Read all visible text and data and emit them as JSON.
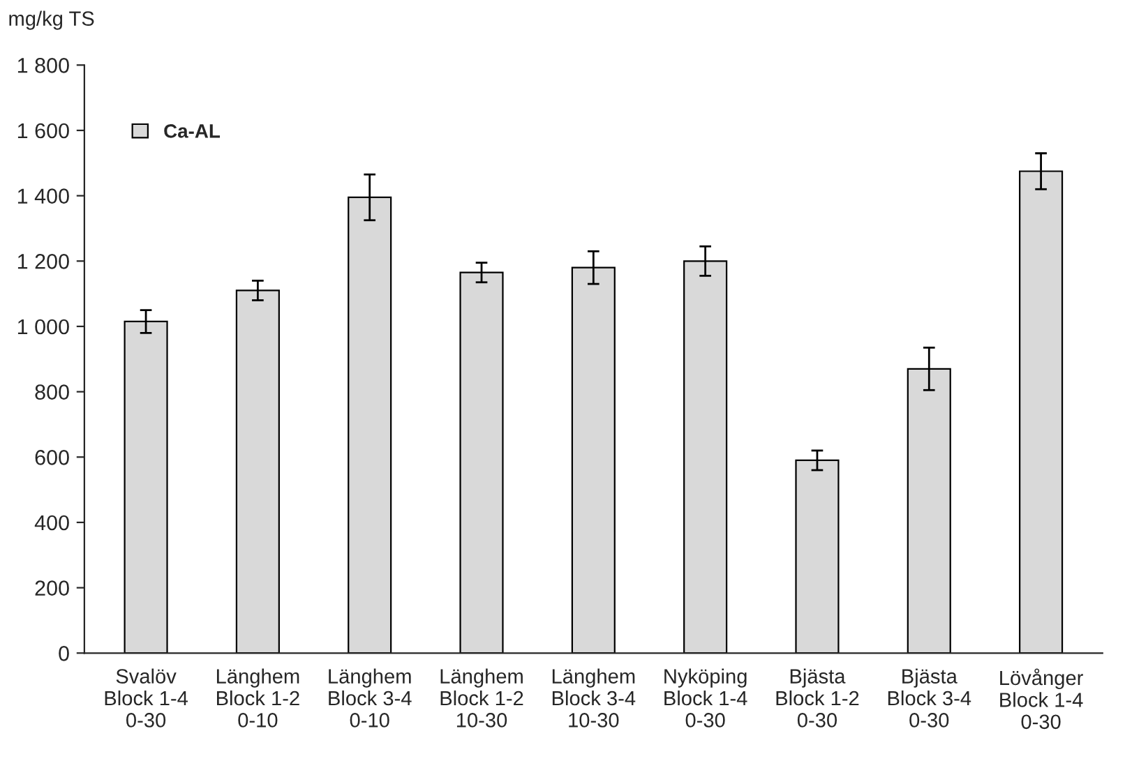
{
  "chart_data": {
    "type": "bar",
    "ylabel": "mg/kg TS",
    "categories": [
      "Svalöv\nBlock 1-4\n0-30",
      "Länghem\nBlock 1-2\n0-10",
      "Länghem\nBlock 3-4\n0-10",
      "Länghem\nBlock 1-2\n10-30",
      "Länghem\nBlock 3-4\n10-30",
      "Nyköping\nBlock 1-4\n0-30",
      "Bjästa\nBlock 1-2\n0-30",
      "Bjästa\nBlock 3-4\n0-30",
      "Lövånger\nBlock 1-4\n0-30"
    ],
    "series": [
      {
        "name": "Ca-AL",
        "color": "#d9d9d9",
        "values": [
          1015,
          1110,
          1395,
          1165,
          1180,
          1200,
          590,
          870,
          1475
        ],
        "errors": [
          35,
          30,
          70,
          30,
          50,
          45,
          30,
          65,
          55
        ]
      }
    ],
    "ylim": [
      0,
      1800
    ],
    "yticks": [
      0,
      200,
      400,
      600,
      800,
      {
        "value": 1000,
        "label": "1 000"
      },
      {
        "value": 1200,
        "label": "1 200"
      },
      {
        "value": 1400,
        "label": "1 400"
      },
      {
        "value": 1600,
        "label": "1 600"
      },
      {
        "value": 1800,
        "label": "1 800"
      }
    ],
    "grid": false,
    "legend": "top left"
  }
}
